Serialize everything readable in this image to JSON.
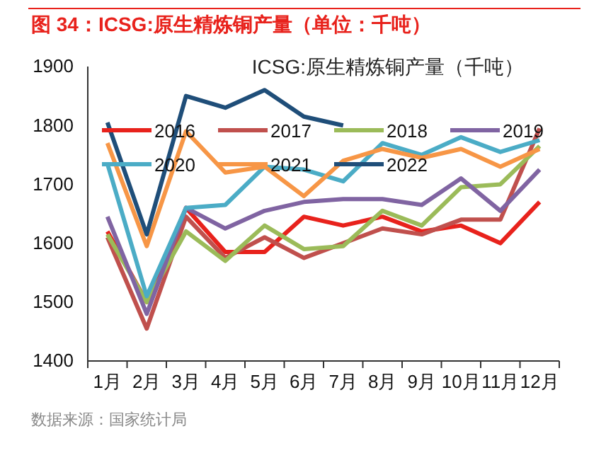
{
  "chart_data": {
    "type": "line",
    "title": "图 34：ICSG:原生精炼铜产量（单位：千吨）",
    "subtitle": "ICSG:原生精炼铜产量（千吨）",
    "annotations": [
      "数据来源：国家统计局"
    ],
    "categories": [
      "1月",
      "2月",
      "3月",
      "4月",
      "5月",
      "6月",
      "7月",
      "8月",
      "9月",
      "10月",
      "11月",
      "12月"
    ],
    "ylim": [
      1400,
      1900
    ],
    "yticks": [
      1400,
      1500,
      1600,
      1700,
      1800,
      1900
    ],
    "grid": false,
    "legend": "top",
    "marker": "none",
    "line_style": "solid",
    "series": [
      {
        "name": "2016",
        "color": "#e8221c",
        "values": [
          1620,
          1500,
          1660,
          1585,
          1585,
          1645,
          1630,
          1645,
          1620,
          1630,
          1600,
          1670
        ]
      },
      {
        "name": "2017",
        "color": "#c0504d",
        "values": [
          1610,
          1455,
          1645,
          1575,
          1610,
          1575,
          1600,
          1625,
          1615,
          1640,
          1640,
          1795
        ]
      },
      {
        "name": "2018",
        "color": "#9bbb59",
        "values": [
          1615,
          1500,
          1620,
          1570,
          1630,
          1590,
          1595,
          1655,
          1630,
          1695,
          1700,
          1765
        ]
      },
      {
        "name": "2019",
        "color": "#8064a2",
        "values": [
          1645,
          1480,
          1660,
          1625,
          1655,
          1670,
          1675,
          1675,
          1665,
          1710,
          1655,
          1725
        ]
      },
      {
        "name": "2020",
        "color": "#4bacc6",
        "values": [
          1735,
          1510,
          1660,
          1665,
          1730,
          1725,
          1705,
          1770,
          1750,
          1780,
          1755,
          1775
        ]
      },
      {
        "name": "2021",
        "color": "#f79646",
        "values": [
          1770,
          1595,
          1790,
          1720,
          1730,
          1680,
          1740,
          1760,
          1745,
          1760,
          1730,
          1760
        ]
      },
      {
        "name": "2022",
        "color": "#1f4e79",
        "values": [
          1805,
          1615,
          1850,
          1830,
          1860,
          1815,
          1800,
          null,
          null,
          null,
          null,
          null
        ]
      }
    ]
  }
}
